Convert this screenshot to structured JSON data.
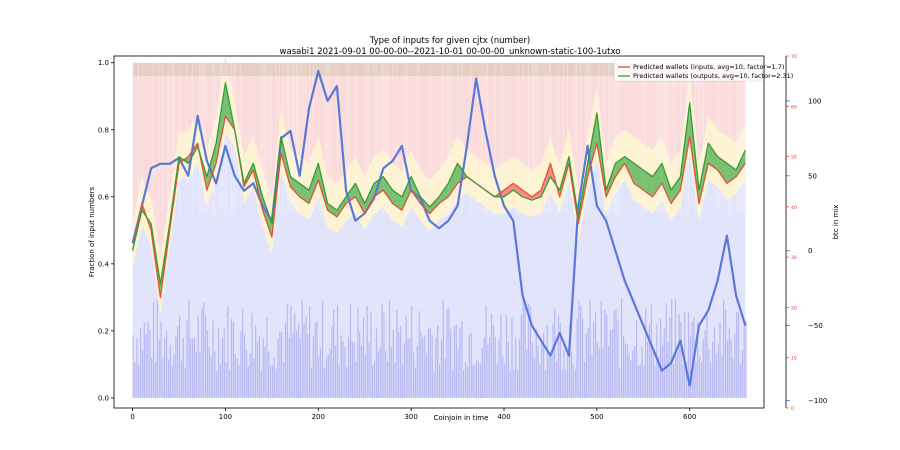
{
  "chart_data": {
    "type": "line",
    "title": "Type of inputs for given cjtx (number)",
    "subtitle": "wasabi1 2021-09-01 00-00-00--2021-10-01 00-00-00_unknown-static-100-1utxo",
    "xlabel": "Coinjoin in time",
    "ylabel": "Fraction of input numbers",
    "y2label": "btc in mix",
    "xlim": [
      -20,
      680
    ],
    "ylim": [
      -0.03,
      1.02
    ],
    "y2lim": [
      -105,
      130
    ],
    "y3lim": [
      0,
      70
    ],
    "x_ticks": [
      0,
      100,
      200,
      300,
      400,
      500,
      600
    ],
    "y_ticks": [
      0.0,
      0.2,
      0.4,
      0.6,
      0.8,
      1.0
    ],
    "y2_ticks": [
      -100,
      -50,
      0,
      50,
      100
    ],
    "y3_ticks": [
      0,
      10,
      20,
      30,
      40,
      50,
      60,
      70
    ],
    "legend_position": "top-right",
    "colors": {
      "inputs": "#e0533b",
      "outputs": "#3a9a3a",
      "btc": "#5a78d8",
      "fill_red": "#f06060",
      "fill_green": "#4caf50",
      "band_blue": "#e2e4fb",
      "band_yellow": "#fdf3d2",
      "band_pink": "#fbdcdc",
      "band_top": "#e6cfc4",
      "spikes": "#a9aaf2"
    },
    "series": [
      {
        "name": "Predicted wallets (inputs, avg=10, factor=1.7)",
        "x": [
          0,
          10,
          20,
          30,
          40,
          50,
          60,
          70,
          80,
          90,
          100,
          110,
          120,
          130,
          140,
          150,
          160,
          170,
          180,
          190,
          200,
          210,
          220,
          230,
          240,
          250,
          260,
          270,
          280,
          290,
          300,
          310,
          320,
          330,
          340,
          350,
          360,
          370,
          380,
          390,
          400,
          410,
          420,
          430,
          440,
          450,
          460,
          470,
          480,
          490,
          500,
          510,
          520,
          530,
          540,
          550,
          560,
          570,
          580,
          590,
          600,
          610,
          620,
          630,
          640,
          650,
          660
        ],
        "values": [
          0.44,
          0.58,
          0.5,
          0.3,
          0.5,
          0.7,
          0.72,
          0.76,
          0.62,
          0.7,
          0.84,
          0.8,
          0.63,
          0.68,
          0.56,
          0.48,
          0.73,
          0.63,
          0.6,
          0.58,
          0.65,
          0.56,
          0.54,
          0.58,
          0.6,
          0.55,
          0.6,
          0.62,
          0.58,
          0.56,
          0.62,
          0.58,
          0.55,
          0.58,
          0.6,
          0.64,
          0.66,
          0.64,
          0.62,
          0.6,
          0.62,
          0.64,
          0.62,
          0.6,
          0.62,
          0.7,
          0.6,
          0.7,
          0.52,
          0.66,
          0.76,
          0.6,
          0.66,
          0.7,
          0.64,
          0.62,
          0.6,
          0.64,
          0.58,
          0.62,
          0.78,
          0.58,
          0.7,
          0.68,
          0.64,
          0.66,
          0.7
        ]
      },
      {
        "name": "Predicted wallets (outputs, avg=10, factor=2.31)",
        "x": [
          0,
          10,
          20,
          30,
          40,
          50,
          60,
          70,
          80,
          90,
          100,
          110,
          120,
          130,
          140,
          150,
          160,
          170,
          180,
          190,
          200,
          210,
          220,
          230,
          240,
          250,
          260,
          270,
          280,
          290,
          300,
          310,
          320,
          330,
          340,
          350,
          360,
          370,
          380,
          390,
          400,
          410,
          420,
          430,
          440,
          450,
          460,
          470,
          480,
          490,
          500,
          510,
          520,
          530,
          540,
          550,
          560,
          570,
          580,
          590,
          600,
          610,
          620,
          630,
          640,
          650,
          660
        ],
        "values": [
          0.44,
          0.56,
          0.52,
          0.34,
          0.52,
          0.72,
          0.7,
          0.75,
          0.66,
          0.76,
          0.94,
          0.8,
          0.64,
          0.7,
          0.6,
          0.52,
          0.78,
          0.66,
          0.64,
          0.62,
          0.7,
          0.58,
          0.56,
          0.6,
          0.64,
          0.58,
          0.64,
          0.66,
          0.62,
          0.6,
          0.66,
          0.6,
          0.57,
          0.6,
          0.64,
          0.7,
          0.66,
          0.64,
          0.62,
          0.6,
          0.6,
          0.62,
          0.6,
          0.59,
          0.6,
          0.66,
          0.62,
          0.72,
          0.54,
          0.7,
          0.85,
          0.62,
          0.7,
          0.72,
          0.7,
          0.68,
          0.66,
          0.7,
          0.62,
          0.66,
          0.88,
          0.62,
          0.76,
          0.72,
          0.7,
          0.68,
          0.74
        ]
      },
      {
        "name": "btc in mix",
        "axis": "y2",
        "x": [
          0,
          10,
          20,
          30,
          40,
          50,
          60,
          70,
          80,
          90,
          100,
          110,
          120,
          130,
          140,
          150,
          160,
          170,
          180,
          190,
          200,
          210,
          220,
          230,
          240,
          250,
          260,
          270,
          280,
          290,
          300,
          310,
          320,
          330,
          340,
          350,
          360,
          370,
          380,
          390,
          400,
          410,
          420,
          430,
          440,
          450,
          460,
          470,
          480,
          490,
          500,
          510,
          520,
          530,
          540,
          550,
          560,
          570,
          580,
          590,
          600,
          610,
          620,
          630,
          640,
          650,
          660
        ],
        "values": [
          5,
          30,
          55,
          58,
          58,
          62,
          50,
          90,
          60,
          45,
          70,
          50,
          40,
          45,
          30,
          20,
          75,
          80,
          50,
          95,
          120,
          100,
          110,
          40,
          20,
          25,
          35,
          55,
          60,
          70,
          40,
          35,
          20,
          15,
          20,
          30,
          70,
          115,
          80,
          50,
          30,
          20,
          -30,
          -50,
          -60,
          -70,
          -55,
          -70,
          30,
          70,
          30,
          20,
          0,
          -20,
          -35,
          -50,
          -65,
          -80,
          -75,
          -60,
          -90,
          -50,
          -40,
          -20,
          10,
          -30,
          -50
        ]
      }
    ]
  }
}
